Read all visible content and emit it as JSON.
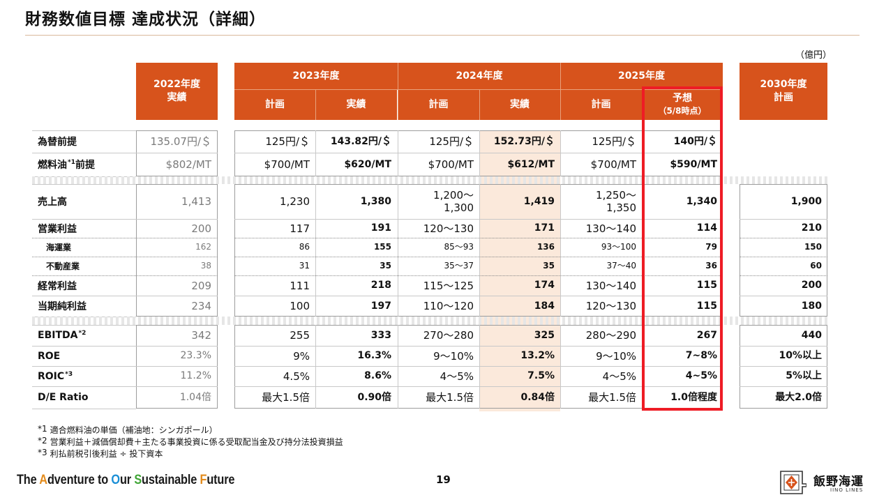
{
  "title": "財務数値目標 達成状況（詳細）",
  "unit": "（億円）",
  "header": {
    "fy2022": [
      "2022年度",
      "実績"
    ],
    "fy2023": "2023年度",
    "fy2024": "2024年度",
    "fy2025": "2025年度",
    "fy2030": [
      "2030年度",
      "計画"
    ],
    "subs": [
      [
        "計画"
      ],
      [
        "実績"
      ],
      [
        "計画"
      ],
      [
        "実績"
      ],
      [
        "計画"
      ],
      [
        "予想",
        "（5/8時点）"
      ]
    ]
  },
  "rows": [
    {
      "label": "為替前提",
      "sup": "",
      "values": [
        "135.07円/＄",
        "125円/＄",
        "143.82円/＄",
        "125円/＄",
        "152.73円/＄",
        "125円/＄",
        "140円/＄",
        ""
      ]
    },
    {
      "label": "燃料油",
      "sup": "*1",
      "label2": "前提",
      "values": [
        "$802/MT",
        "$700/MT",
        "$620/MT",
        "$700/MT",
        "$612/MT",
        "$700/MT",
        "$590/MT",
        ""
      ]
    },
    {
      "label": "売上高",
      "sup": "",
      "values": [
        "1,413",
        "1,230",
        "1,380",
        "1,200～\n1,300",
        "1,419",
        "1,250～\n1,350",
        "1,340",
        "1,900"
      ]
    },
    {
      "label": "営業利益",
      "sup": "",
      "values": [
        "200",
        "117",
        "191",
        "120～130",
        "171",
        "130～140",
        "114",
        "210"
      ]
    },
    {
      "label": "海運業",
      "sup": "",
      "values": [
        "162",
        "86",
        "155",
        "85～93",
        "136",
        "93～100",
        "79",
        "150"
      ]
    },
    {
      "label": "不動産業",
      "sup": "",
      "values": [
        "38",
        "31",
        "35",
        "35～37",
        "35",
        "37～40",
        "36",
        "60"
      ]
    },
    {
      "label": "経常利益",
      "sup": "",
      "values": [
        "209",
        "111",
        "218",
        "115～125",
        "174",
        "130～140",
        "115",
        "200"
      ]
    },
    {
      "label": "当期純利益",
      "sup": "",
      "values": [
        "234",
        "100",
        "197",
        "110～120",
        "184",
        "120～130",
        "115",
        "180"
      ]
    },
    {
      "label": "EBITDA",
      "sup": "*2",
      "values": [
        "342",
        "255",
        "333",
        "270～280",
        "325",
        "280～290",
        "267",
        "440"
      ]
    },
    {
      "label": "ROE",
      "sup": "",
      "values": [
        "23.3%",
        "9%",
        "16.3%",
        "9～10%",
        "13.2%",
        "9～10%",
        "7~8%",
        "10%以上"
      ]
    },
    {
      "label": "ROIC",
      "sup": "*3",
      "values": [
        "11.2%",
        "4.5%",
        "8.6%",
        "4～5%",
        "7.5%",
        "4～5%",
        "4~5%",
        "5%以上"
      ]
    },
    {
      "label": "D/E Ratio",
      "sup": "",
      "values": [
        "1.04倍",
        "最大1.5倍",
        "0.90倍",
        "最大1.5倍",
        "0.84倍",
        "最大1.5倍",
        "1.0倍程度",
        "最大2.0倍"
      ]
    }
  ],
  "footnotes": [
    {
      "mark": "*1",
      "text": "適合燃料油の単価（補油地：シンガポール）"
    },
    {
      "mark": "*2",
      "text": "営業利益＋減価償却費＋主たる事業投資に係る受取配当金及び持分法投資損益"
    },
    {
      "mark": "*3",
      "text": "利払前税引後利益 ÷ 投下資本"
    }
  ],
  "tagline": [
    {
      "t": "The ",
      "c": "#1a1a1a"
    },
    {
      "t": "A",
      "c": "#e38b1c"
    },
    {
      "t": "dventure to ",
      "c": "#1a1a1a"
    },
    {
      "t": "O",
      "c": "#1b8fd6"
    },
    {
      "t": "ur ",
      "c": "#1a1a1a"
    },
    {
      "t": "S",
      "c": "#3fa535"
    },
    {
      "t": "ustainable ",
      "c": "#1a1a1a"
    },
    {
      "t": "F",
      "c": "#e38b1c"
    },
    {
      "t": "uture",
      "c": "#1a1a1a"
    }
  ],
  "page_number": "19",
  "logo": {
    "name": "飯野海運",
    "sub": "IINO LINES"
  },
  "colors": {
    "header": "#d7531c",
    "highlight_box": "#ee1c25",
    "actual_2024_shade": "#fbe9db"
  }
}
